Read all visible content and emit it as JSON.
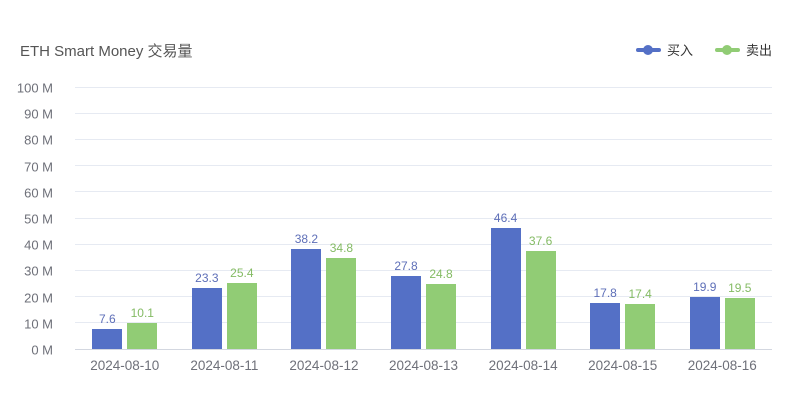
{
  "header": {
    "title": "ETH Smart Money 交易量"
  },
  "chart_data": {
    "type": "bar",
    "title": "ETH Smart Money 交易量",
    "categories": [
      "2024-08-10",
      "2024-08-11",
      "2024-08-12",
      "2024-08-13",
      "2024-08-14",
      "2024-08-15",
      "2024-08-16"
    ],
    "series": [
      {
        "name": "买入",
        "color": "#5470c6",
        "label_color": "#5e6fb8",
        "values": [
          7.6,
          23.3,
          38.2,
          27.8,
          46.4,
          17.8,
          19.9
        ]
      },
      {
        "name": "卖出",
        "color": "#91cc75",
        "label_color": "#84bb64",
        "values": [
          10.1,
          25.4,
          34.8,
          24.8,
          37.6,
          17.4,
          19.5
        ]
      }
    ],
    "xlabel": "",
    "ylabel": "",
    "ylim": [
      0,
      100
    ],
    "ytick_step": 10,
    "ytick_suffix": " M",
    "grid": true,
    "legend_position": "top-right",
    "background_color": "#ffffff",
    "gridline_color": "#e6eaf2",
    "axis_label_color": "#6e7079"
  }
}
